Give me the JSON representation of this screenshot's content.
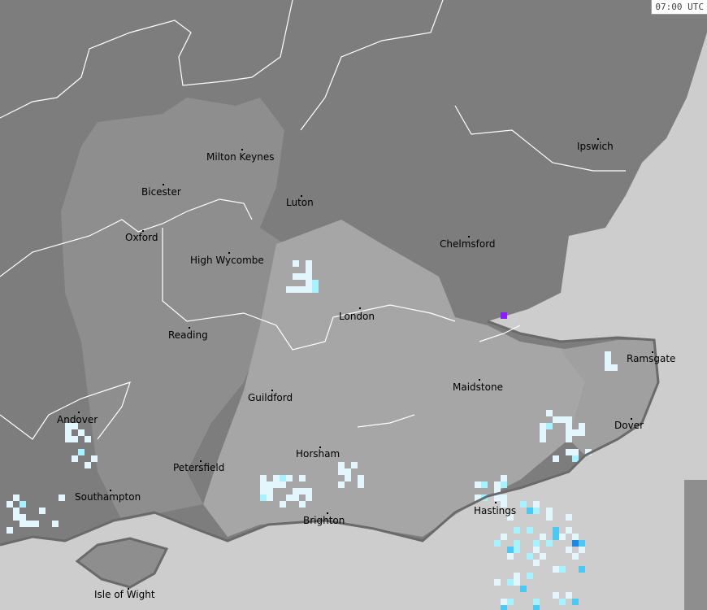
{
  "timestamp": "07:00 UTC",
  "colors": {
    "sea": "#cdcdcd",
    "land_dark": "#7d7d7d",
    "land_mid": "#8e8e8e",
    "land_light": "#a6a6a6",
    "boundary": "#ffffff",
    "coast": "#6a6a6a",
    "rain_trace": "#e2f6fb",
    "rain_light": "#a8f2ff",
    "rain_moderate": "#4cc8f4",
    "rain_heavy": "#1e88e0",
    "rain_intense": "#8a1cff"
  },
  "cities": [
    {
      "name": "Milton Keynes"
    },
    {
      "name": "Ipswich"
    },
    {
      "name": "Bicester"
    },
    {
      "name": "Luton"
    },
    {
      "name": "Oxford"
    },
    {
      "name": "Chelmsford"
    },
    {
      "name": "High Wycombe"
    },
    {
      "name": "London"
    },
    {
      "name": "Reading"
    },
    {
      "name": "Ramsgate"
    },
    {
      "name": "Maidstone"
    },
    {
      "name": "Guildford"
    },
    {
      "name": "Andover"
    },
    {
      "name": "Dover"
    },
    {
      "name": "Horsham"
    },
    {
      "name": "Petersfield"
    },
    {
      "name": "Southampton"
    },
    {
      "name": "Hastings"
    },
    {
      "name": "Brighton"
    },
    {
      "name": "Isle of Wight"
    }
  ]
}
